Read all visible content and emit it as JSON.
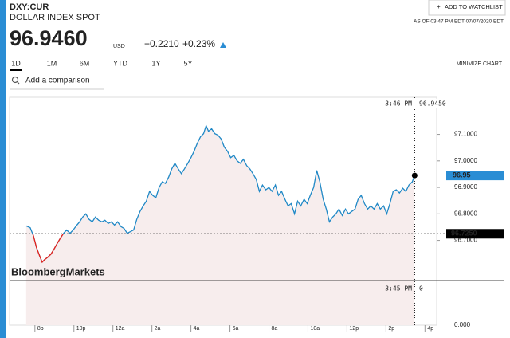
{
  "header": {
    "symbol": "DXY:CUR",
    "name": "DOLLAR INDEX SPOT",
    "price": "96.9460",
    "currency": "USD",
    "change": "+0.2210",
    "change_pct": "+0.23%",
    "watchlist": "ADD TO WATCHLIST",
    "as_of": "AS OF 03:47 PM EDT 07/07/2020 EDT"
  },
  "tabs": [
    "1D",
    "1M",
    "6M",
    "YTD",
    "1Y",
    "5Y"
  ],
  "minimize": "MINIMIZE CHART",
  "comparison": "Add a comparison",
  "watermark": "BloombergMarkets",
  "chart_data": {
    "type": "line",
    "color": "#1f88c6",
    "down_color": "#e8221b",
    "fill": "#f7eded",
    "x": [
      19.55,
      19.76,
      19.92,
      20.08,
      20.24,
      20.37,
      20.49,
      20.65,
      20.82,
      20.98,
      21.14,
      21.31,
      21.47,
      21.63,
      21.8,
      21.96,
      22.12,
      22.29,
      22.45,
      22.61,
      22.78,
      22.94,
      23.1,
      23.27,
      23.43,
      23.59,
      23.76,
      23.92,
      24.08,
      24.24,
      24.41,
      24.57,
      24.73,
      24.9,
      25.06,
      25.22,
      25.39,
      25.55,
      25.71,
      25.88,
      26.04,
      26.2,
      26.37,
      26.53,
      26.69,
      26.86,
      27.02,
      27.18,
      27.35,
      27.51,
      27.67,
      27.84,
      28.0,
      28.16,
      28.33,
      28.49,
      28.65,
      28.78,
      28.9,
      29.06,
      29.22,
      29.39,
      29.55,
      29.71,
      29.88,
      30.04,
      30.2,
      30.37,
      30.53,
      30.69,
      30.86,
      31.02,
      31.18,
      31.35,
      31.51,
      31.67,
      31.84,
      32.0,
      32.16,
      32.33,
      32.49,
      32.65,
      32.82,
      32.98,
      33.14,
      33.31,
      33.47,
      33.63,
      33.8,
      33.96,
      34.12,
      34.29,
      34.45,
      34.61,
      34.78,
      34.94,
      35.1,
      35.27,
      35.43,
      35.59,
      35.76,
      35.92,
      36.08,
      36.24,
      36.41,
      36.57,
      36.73,
      36.9,
      37.06,
      37.22,
      37.39,
      37.55,
      37.71,
      37.88,
      38.04,
      38.2,
      38.37,
      38.53,
      38.69,
      38.86,
      39.02,
      39.18,
      39.35,
      39.47
    ],
    "values": [
      96.755,
      96.748,
      96.718,
      96.673,
      96.642,
      96.618,
      96.627,
      96.636,
      96.648,
      96.667,
      96.688,
      96.709,
      96.727,
      96.739,
      96.727,
      96.739,
      96.755,
      96.77,
      96.788,
      96.8,
      96.779,
      96.77,
      96.788,
      96.776,
      96.77,
      96.776,
      96.764,
      96.77,
      96.758,
      96.77,
      96.752,
      96.745,
      96.727,
      96.733,
      96.739,
      96.779,
      96.809,
      96.83,
      96.848,
      96.885,
      96.87,
      96.861,
      96.9,
      96.921,
      96.915,
      96.939,
      96.97,
      96.991,
      96.97,
      96.952,
      96.97,
      96.991,
      97.012,
      97.036,
      97.067,
      97.091,
      97.103,
      97.133,
      97.112,
      97.121,
      97.103,
      97.097,
      97.082,
      97.052,
      97.036,
      97.012,
      97.021,
      97.0,
      96.991,
      97.006,
      96.982,
      96.97,
      96.952,
      96.93,
      96.885,
      96.909,
      96.891,
      96.9,
      96.885,
      96.909,
      96.87,
      96.885,
      96.855,
      96.83,
      96.839,
      96.8,
      96.848,
      96.83,
      96.855,
      96.839,
      96.87,
      96.9,
      96.964,
      96.921,
      96.855,
      96.818,
      96.77,
      96.788,
      96.8,
      96.818,
      96.794,
      96.818,
      96.8,
      96.809,
      96.818,
      96.855,
      96.87,
      96.839,
      96.818,
      96.83,
      96.818,
      96.839,
      96.818,
      96.83,
      96.8,
      96.839,
      96.885,
      96.891,
      96.879,
      96.897,
      96.885,
      96.909,
      96.921,
      96.945
    ],
    "xlim": [
      18.7,
      40.6
    ],
    "xticks": [
      {
        "value": 20,
        "label": "8p"
      },
      {
        "value": 22,
        "label": "10p"
      },
      {
        "value": 24,
        "label": "12a"
      },
      {
        "value": 26,
        "label": "2a"
      },
      {
        "value": 28,
        "label": "4a"
      },
      {
        "value": 30,
        "label": "6a"
      },
      {
        "value": 32,
        "label": "8a"
      },
      {
        "value": 34,
        "label": "10a"
      },
      {
        "value": 36,
        "label": "12p"
      },
      {
        "value": 38,
        "label": "2p"
      },
      {
        "value": 40,
        "label": "4p"
      }
    ],
    "ylim": [
      96.38,
      97.24
    ],
    "yticks": [
      {
        "value": 96.7,
        "label": "96.7000"
      },
      {
        "value": 96.8,
        "label": "96.8000"
      },
      {
        "value": 96.9,
        "label": "96.9000"
      },
      {
        "value": 97.0,
        "label": "97.0000"
      },
      {
        "value": 97.1,
        "label": "97.1000"
      }
    ],
    "reference": {
      "value": 96.725,
      "label": "96.7250"
    },
    "last_tag": "96.95",
    "volume_axis_label": "0.000",
    "crosshair_top": [
      "3:46 PM",
      "96.9450"
    ],
    "crosshair_bottom": [
      "3:45 PM",
      "0"
    ]
  }
}
